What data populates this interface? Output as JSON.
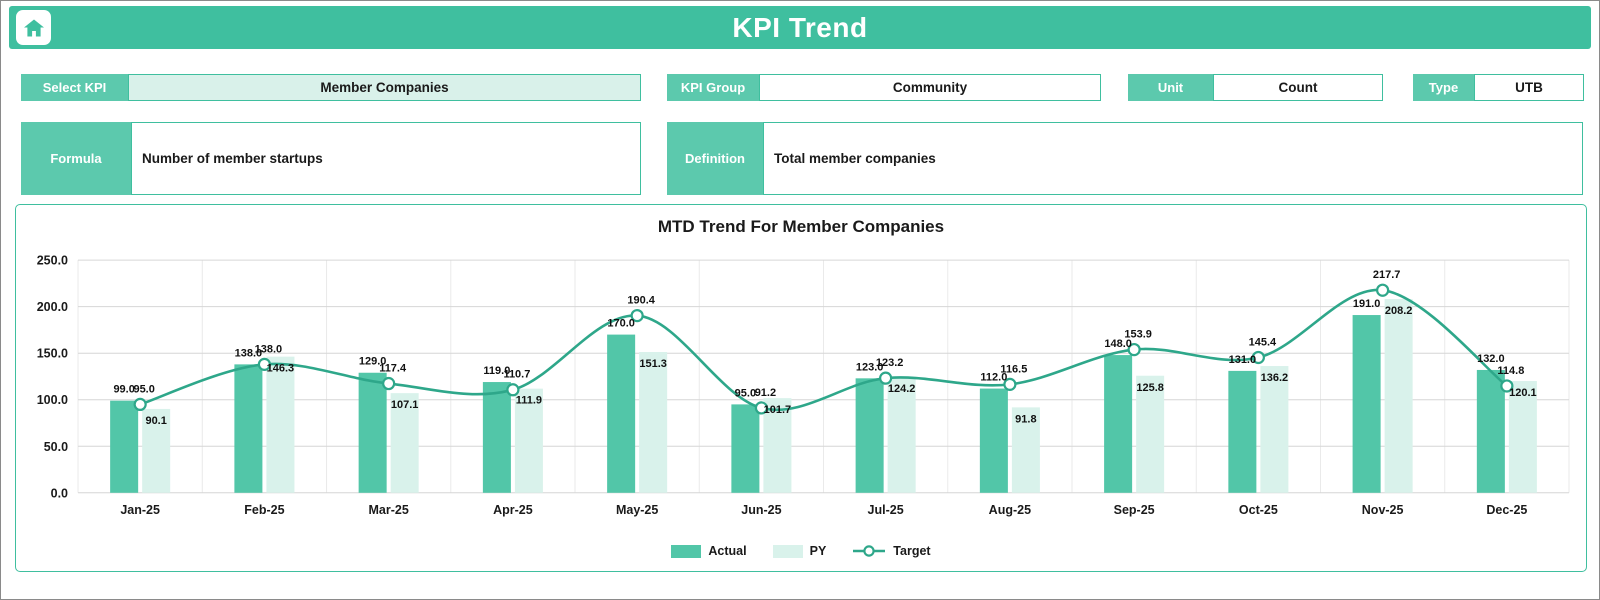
{
  "header": {
    "title": "KPI Trend"
  },
  "fields": {
    "select_kpi": {
      "label": "Select KPI",
      "value": "Member Companies"
    },
    "kpi_group": {
      "label": "KPI Group",
      "value": "Community"
    },
    "unit": {
      "label": "Unit",
      "value": "Count"
    },
    "type": {
      "label": "Type",
      "value": "UTB"
    },
    "formula": {
      "label": "Formula",
      "value": "Number of member startups"
    },
    "definition": {
      "label": "Definition",
      "value": "Total member companies"
    }
  },
  "chart_data": {
    "type": "bar",
    "title": "MTD Trend For Member Companies",
    "categories": [
      "Jan-25",
      "Feb-25",
      "Mar-25",
      "Apr-25",
      "May-25",
      "Jun-25",
      "Jul-25",
      "Aug-25",
      "Sep-25",
      "Oct-25",
      "Nov-25",
      "Dec-25"
    ],
    "series": [
      {
        "name": "Actual",
        "type": "bar",
        "color": "#52C6A8",
        "values": [
          99.0,
          138.0,
          129.0,
          119.0,
          170.0,
          95.0,
          123.0,
          112.0,
          148.0,
          131.0,
          191.0,
          132.0
        ]
      },
      {
        "name": "PY",
        "type": "bar",
        "color": "#D9F2EB",
        "values": [
          90.1,
          146.3,
          107.1,
          111.9,
          151.3,
          101.7,
          124.2,
          91.8,
          125.8,
          136.2,
          208.2,
          120.1
        ]
      },
      {
        "name": "Target",
        "type": "line",
        "color": "#2EA78A",
        "values": [
          95.0,
          138.0,
          117.4,
          110.7,
          190.4,
          91.2,
          123.2,
          116.5,
          153.9,
          145.4,
          217.7,
          114.8
        ]
      }
    ],
    "ylim": [
      0,
      250
    ],
    "yticks": [
      0,
      50,
      100,
      150,
      200,
      250
    ],
    "grid": true,
    "legend_position": "bottom"
  },
  "theme": {
    "accent": "#3FBF9F",
    "chip": "#5CC9AD",
    "tint": "#D9F1EA",
    "grid_line": "#D6D6D6",
    "text": "#1A1A1A"
  }
}
